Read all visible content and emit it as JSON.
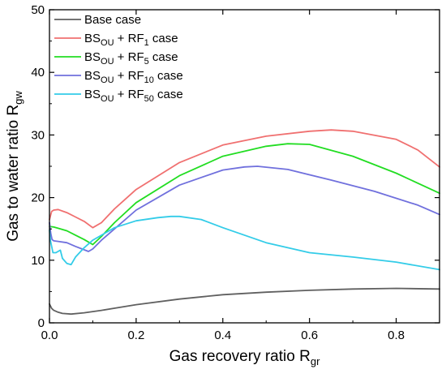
{
  "chart_data": {
    "type": "line",
    "xlabel": "Gas recovery ratio",
    "xlabel_sub": "gr",
    "ylabel": "Gas to water ratio",
    "ylabel_sub": "gw",
    "xlim": [
      0,
      0.9
    ],
    "ylim": [
      0,
      50
    ],
    "x_ticks": [
      0.0,
      0.2,
      0.4,
      0.6,
      0.8
    ],
    "y_ticks": [
      0,
      10,
      20,
      30,
      40,
      50
    ],
    "x_tick_labels": [
      "0.0",
      "0.2",
      "0.4",
      "0.6",
      "0.8"
    ],
    "y_tick_labels": [
      "0",
      "10",
      "20",
      "30",
      "40",
      "50"
    ],
    "grid": false,
    "legend_position": "top-left",
    "series": [
      {
        "name": "Base case",
        "legend_main": "Base case",
        "legend_sub": "",
        "legend_tail": "",
        "color": "#606060",
        "x": [
          0.0,
          0.005,
          0.01,
          0.02,
          0.03,
          0.05,
          0.08,
          0.12,
          0.2,
          0.3,
          0.4,
          0.5,
          0.6,
          0.7,
          0.8,
          0.9
        ],
        "y": [
          3.0,
          2.3,
          2.0,
          1.7,
          1.5,
          1.4,
          1.6,
          2.0,
          2.9,
          3.8,
          4.5,
          4.9,
          5.2,
          5.4,
          5.5,
          5.4
        ]
      },
      {
        "name": "BSOU + RF1 case",
        "legend_main": "BS",
        "legend_sub": "OU",
        "legend_mid": " + RF",
        "legend_sub2": "1",
        "legend_tail": "  case",
        "color": "#f07070",
        "x": [
          0.0,
          0.005,
          0.01,
          0.02,
          0.04,
          0.06,
          0.08,
          0.1,
          0.12,
          0.15,
          0.2,
          0.3,
          0.4,
          0.5,
          0.6,
          0.65,
          0.7,
          0.8,
          0.85,
          0.9
        ],
        "y": [
          16.5,
          17.8,
          18.0,
          18.1,
          17.6,
          16.9,
          16.2,
          15.2,
          16.0,
          18.2,
          21.3,
          25.6,
          28.4,
          29.8,
          30.6,
          30.8,
          30.6,
          29.3,
          27.6,
          24.9
        ]
      },
      {
        "name": "BSOU + RF5 case",
        "legend_main": "BS",
        "legend_sub": "OU",
        "legend_mid": " + RF",
        "legend_sub2": "5",
        "legend_tail": "  case",
        "color": "#22dd22",
        "x": [
          0.0,
          0.01,
          0.02,
          0.04,
          0.06,
          0.08,
          0.1,
          0.12,
          0.15,
          0.2,
          0.3,
          0.4,
          0.5,
          0.55,
          0.6,
          0.7,
          0.8,
          0.9
        ],
        "y": [
          15.4,
          15.3,
          15.1,
          14.7,
          14.0,
          13.3,
          12.5,
          13.8,
          16.0,
          19.2,
          23.5,
          26.6,
          28.2,
          28.6,
          28.5,
          26.6,
          23.9,
          20.7
        ]
      },
      {
        "name": "BSOU + RF10 case",
        "legend_main": "BS",
        "legend_sub": "OU",
        "legend_mid": " + RF",
        "legend_sub2": "10",
        "legend_tail": " case",
        "color": "#7070dd",
        "x": [
          0.0,
          0.003,
          0.006,
          0.01,
          0.02,
          0.04,
          0.06,
          0.075,
          0.09,
          0.1,
          0.12,
          0.15,
          0.2,
          0.3,
          0.4,
          0.45,
          0.48,
          0.55,
          0.65,
          0.75,
          0.85,
          0.9
        ],
        "y": [
          16.0,
          14.3,
          13.3,
          13.1,
          13.0,
          12.8,
          12.2,
          11.8,
          11.4,
          11.8,
          13.2,
          15.0,
          18.0,
          22.0,
          24.4,
          24.9,
          25.0,
          24.5,
          22.8,
          21.0,
          18.8,
          17.3
        ]
      },
      {
        "name": "BSOU + RF50 case",
        "legend_main": "BS",
        "legend_sub": "OU",
        "legend_mid": " + RF",
        "legend_sub2": "50",
        "legend_tail": " case",
        "color": "#33cce8",
        "x": [
          0.0,
          0.002,
          0.005,
          0.008,
          0.015,
          0.025,
          0.03,
          0.04,
          0.05,
          0.06,
          0.08,
          0.1,
          0.15,
          0.2,
          0.25,
          0.28,
          0.3,
          0.35,
          0.4,
          0.5,
          0.6,
          0.7,
          0.8,
          0.9
        ],
        "y": [
          14.8,
          13.2,
          12.2,
          11.2,
          11.2,
          11.6,
          10.3,
          9.5,
          9.3,
          10.5,
          12.0,
          13.2,
          15.2,
          16.3,
          16.8,
          17.0,
          17.0,
          16.5,
          15.2,
          12.8,
          11.2,
          10.5,
          9.7,
          8.5
        ]
      }
    ]
  }
}
